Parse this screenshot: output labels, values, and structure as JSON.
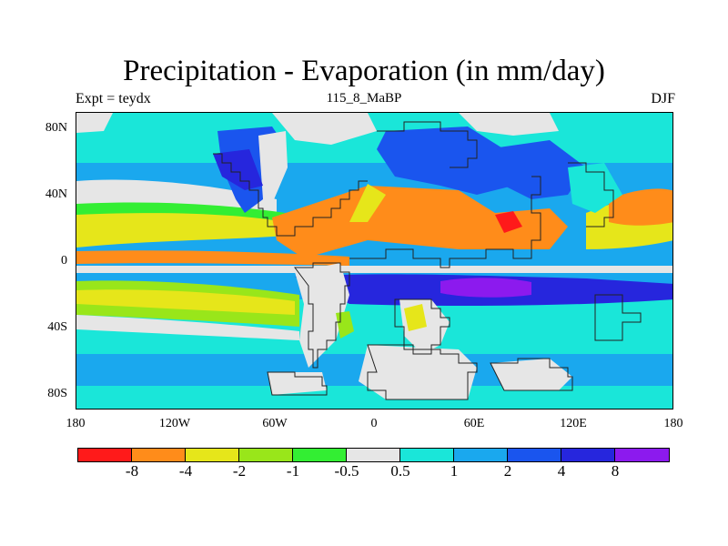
{
  "title": "Precipitation - Evaporation (in mm/day)",
  "subtitle_left": "Expt = teydx",
  "subtitle_center": "115_8_MaBP",
  "subtitle_right": "DJF",
  "lat_labels": [
    "80N",
    "40N",
    "0",
    "40S",
    "80S"
  ],
  "lon_labels": [
    "180",
    "120W",
    "60W",
    "0",
    "60E",
    "120E",
    "180"
  ],
  "colorbar": {
    "colors": [
      "#ff1a1a",
      "#ff8c1a",
      "#e6e61a",
      "#99e61a",
      "#33ee33",
      "#e6e6e6",
      "#1ae6d9",
      "#1aa8ee",
      "#1a55ee",
      "#2626dd",
      "#8c1aee"
    ],
    "labels": [
      "-8",
      "-4",
      "-2",
      "-1",
      "-0.5",
      "0.5",
      "1",
      "2",
      "4",
      "8"
    ]
  },
  "colors": {
    "land_gray": "#e6e6e6",
    "ocean_base": "#1aa8ee",
    "grid_box_outline": "#222222"
  }
}
